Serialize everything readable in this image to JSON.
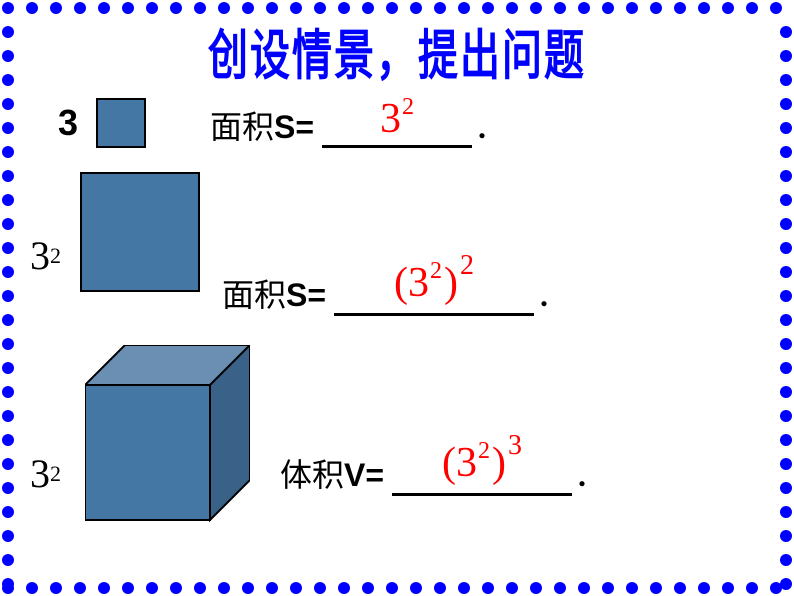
{
  "border": {
    "dot_color": "#0000ff",
    "dot_size": 12,
    "spacing": 24
  },
  "title": {
    "text": "创设情景，提出问题",
    "color": "#0000ff",
    "fontsize": 40
  },
  "shape_fill": "#4577a4",
  "shape_stroke": "#000000",
  "answer_color": "#ff0000",
  "row1": {
    "side_label_base": "3",
    "formula_label_cn": "面积",
    "formula_label_var": "S=",
    "answer_base": "3",
    "answer_sup": "2",
    "period": "."
  },
  "row2": {
    "side_label_base": "3",
    "side_label_sup": "2",
    "formula_label_cn": "面积",
    "formula_label_var": "S=",
    "answer_open": "(",
    "answer_inner_base": "3",
    "answer_inner_sup": "2",
    "answer_close": ")",
    "answer_outer_sup": "2",
    "period": "."
  },
  "row3": {
    "side_label_base": "3",
    "side_label_sup": "2",
    "formula_label_cn": "体积",
    "formula_label_var": "V=",
    "answer_open": "(",
    "answer_inner_base": "3",
    "answer_inner_sup": "2",
    "answer_close": ")",
    "answer_outer_sup": "3",
    "period": "."
  }
}
